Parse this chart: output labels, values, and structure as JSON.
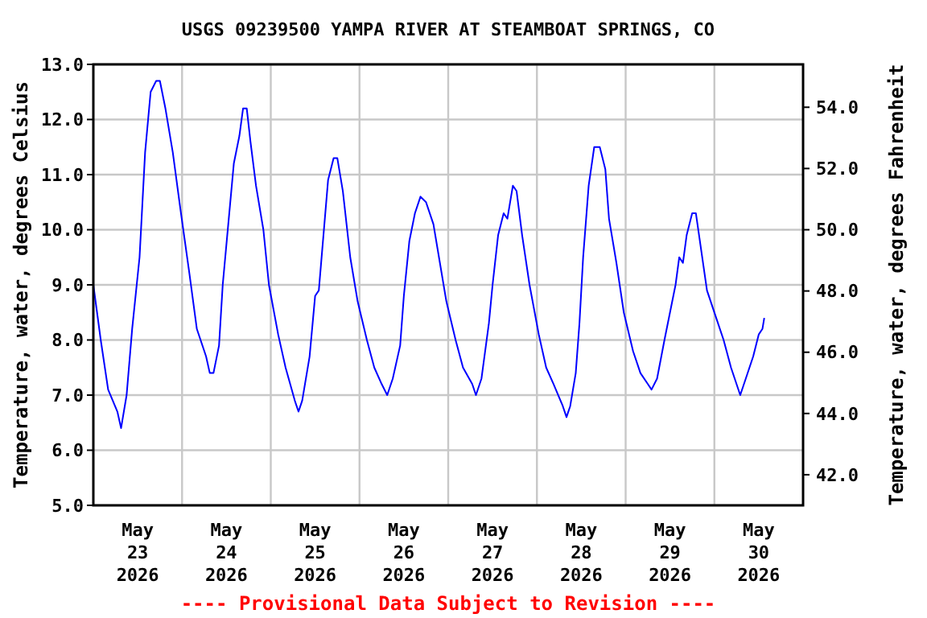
{
  "chart_data": {
    "type": "line",
    "title": "USGS 09239500 YAMPA RIVER AT STEAMBOAT SPRINGS, CO",
    "ylabel": "Temperature, water, degrees Celsius",
    "y2label": "Temperature, water, degrees Fahrenheit",
    "annotations": [
      "---- Provisional Data Subject to Revision ----"
    ],
    "x": [
      "2026-05-23T00:00",
      "2026-05-23T02:00",
      "2026-05-23T04:00",
      "2026-05-23T06:30",
      "2026-05-23T07:30",
      "2026-05-23T09:00",
      "2026-05-23T10:30",
      "2026-05-23T12:30",
      "2026-05-23T14:00",
      "2026-05-23T15:30",
      "2026-05-23T17:00",
      "2026-05-23T18:00",
      "2026-05-23T19:30",
      "2026-05-23T21:30",
      "2026-05-23T23:30",
      "2026-05-24T02:00",
      "2026-05-24T04:00",
      "2026-05-24T06:30",
      "2026-05-24T07:30",
      "2026-05-24T08:30",
      "2026-05-24T10:00",
      "2026-05-24T11:00",
      "2026-05-24T12:30",
      "2026-05-24T14:00",
      "2026-05-24T15:30",
      "2026-05-24T16:30",
      "2026-05-24T17:30",
      "2026-05-24T18:30",
      "2026-05-24T20:00",
      "2026-05-24T22:00",
      "2026-05-24T23:30",
      "2026-05-25T02:00",
      "2026-05-25T04:00",
      "2026-05-25T06:30",
      "2026-05-25T07:30",
      "2026-05-25T08:30",
      "2026-05-25T10:30",
      "2026-05-25T12:00",
      "2026-05-25T13:00",
      "2026-05-25T14:30",
      "2026-05-25T15:30",
      "2026-05-25T17:00",
      "2026-05-25T18:00",
      "2026-05-25T19:30",
      "2026-05-25T21:30",
      "2026-05-25T23:30",
      "2026-05-26T02:00",
      "2026-05-26T04:00",
      "2026-05-26T06:00",
      "2026-05-26T07:30",
      "2026-05-26T09:00",
      "2026-05-26T11:00",
      "2026-05-26T12:00",
      "2026-05-26T13:30",
      "2026-05-26T15:00",
      "2026-05-26T16:30",
      "2026-05-26T18:00",
      "2026-05-26T20:00",
      "2026-05-26T21:30",
      "2026-05-26T23:30",
      "2026-05-27T02:00",
      "2026-05-27T04:00",
      "2026-05-27T06:30",
      "2026-05-27T07:30",
      "2026-05-27T09:00",
      "2026-05-27T11:00",
      "2026-05-27T12:00",
      "2026-05-27T13:30",
      "2026-05-27T15:00",
      "2026-05-27T16:00",
      "2026-05-27T17:30",
      "2026-05-27T18:30",
      "2026-05-27T20:00",
      "2026-05-27T22:00",
      "2026-05-28T00:30",
      "2026-05-28T02:30",
      "2026-05-28T04:30",
      "2026-05-28T07:00",
      "2026-05-28T08:00",
      "2026-05-28T09:00",
      "2026-05-28T10:30",
      "2026-05-28T11:30",
      "2026-05-28T12:30",
      "2026-05-28T14:00",
      "2026-05-28T15:30",
      "2026-05-28T17:00",
      "2026-05-28T18:30",
      "2026-05-28T19:30",
      "2026-05-28T21:30",
      "2026-05-28T23:30",
      "2026-05-29T02:00",
      "2026-05-29T04:00",
      "2026-05-29T06:00",
      "2026-05-29T07:00",
      "2026-05-29T08:30",
      "2026-05-29T10:30",
      "2026-05-29T12:00",
      "2026-05-29T13:30",
      "2026-05-29T14:30",
      "2026-05-29T15:30",
      "2026-05-29T16:30",
      "2026-05-29T18:00",
      "2026-05-29T19:00",
      "2026-05-29T20:30",
      "2026-05-29T22:00",
      "2026-05-30T00:30",
      "2026-05-30T02:30",
      "2026-05-30T04:30",
      "2026-05-30T07:00",
      "2026-05-30T08:30",
      "2026-05-30T10:30",
      "2026-05-30T12:00",
      "2026-05-30T13:00",
      "2026-05-30T13:30"
    ],
    "series": [
      {
        "color": "#0000ff",
        "values": [
          9.0,
          8.0,
          7.1,
          6.7,
          6.4,
          7.0,
          8.2,
          9.5,
          11.4,
          12.5,
          12.7,
          12.7,
          12.2,
          11.4,
          10.4,
          9.2,
          8.2,
          7.7,
          7.4,
          7.4,
          7.9,
          9.0,
          10.1,
          11.2,
          11.7,
          12.2,
          12.2,
          11.6,
          10.8,
          10.0,
          9.0,
          8.1,
          7.5,
          6.9,
          6.7,
          6.9,
          7.7,
          8.8,
          8.9,
          10.1,
          10.9,
          11.3,
          11.3,
          10.7,
          9.5,
          8.7,
          8.0,
          7.5,
          7.2,
          7.0,
          7.3,
          7.9,
          8.8,
          9.8,
          10.3,
          10.6,
          10.5,
          10.1,
          9.5,
          8.7,
          8.0,
          7.5,
          7.2,
          7.0,
          7.3,
          8.3,
          9.0,
          9.9,
          10.3,
          10.2,
          10.8,
          10.7,
          9.9,
          9.0,
          8.1,
          7.5,
          7.2,
          6.8,
          6.6,
          6.8,
          7.4,
          8.3,
          9.5,
          10.8,
          11.5,
          11.5,
          11.1,
          10.2,
          9.4,
          8.5,
          7.8,
          7.4,
          7.2,
          7.1,
          7.3,
          8.0,
          8.5,
          9.0,
          9.5,
          9.4,
          9.9,
          10.3,
          10.3,
          9.6,
          8.9,
          8.4,
          8.0,
          7.5,
          7.0,
          7.3,
          7.7,
          8.1,
          8.2,
          8.4
        ]
      }
    ],
    "xlim": [
      "2026-05-23T00:00",
      "2026-05-31T00:00"
    ],
    "xticks": [
      {
        "value": "2026-05-23T12:00",
        "label": "May\n23\n2026"
      },
      {
        "value": "2026-05-24T00:00",
        "label": null
      },
      {
        "value": "2026-05-24T12:00",
        "label": "May\n24\n2026"
      },
      {
        "value": "2026-05-25T00:00",
        "label": null
      },
      {
        "value": "2026-05-25T12:00",
        "label": "May\n25\n2026"
      },
      {
        "value": "2026-05-26T00:00",
        "label": null
      },
      {
        "value": "2026-05-26T12:00",
        "label": "May\n26\n2026"
      },
      {
        "value": "2026-05-27T00:00",
        "label": null
      },
      {
        "value": "2026-05-27T12:00",
        "label": "May\n27\n2026"
      },
      {
        "value": "2026-05-28T00:00",
        "label": null
      },
      {
        "value": "2026-05-28T12:00",
        "label": "May\n28\n2026"
      },
      {
        "value": "2026-05-29T00:00",
        "label": null
      },
      {
        "value": "2026-05-29T12:00",
        "label": "May\n29\n2026"
      },
      {
        "value": "2026-05-30T00:00",
        "label": null
      },
      {
        "value": "2026-05-30T12:00",
        "label": "May\n30\n2026"
      }
    ],
    "ylim": [
      5,
      13
    ],
    "yticks": [
      {
        "value": 5,
        "label": "5.0"
      },
      {
        "value": 6,
        "label": "6.0"
      },
      {
        "value": 7,
        "label": "7.0"
      },
      {
        "value": 8,
        "label": "8.0"
      },
      {
        "value": 9,
        "label": "9.0"
      },
      {
        "value": 10,
        "label": "10.0"
      },
      {
        "value": 11,
        "label": "11.0"
      },
      {
        "value": 12,
        "label": "12.0"
      },
      {
        "value": 13,
        "label": "13.0"
      }
    ],
    "y2lim": [
      41,
      55.4
    ],
    "y2ticks": [
      {
        "value": 42,
        "label": "42.0"
      },
      {
        "value": 44,
        "label": "44.0"
      },
      {
        "value": 46,
        "label": "46.0"
      },
      {
        "value": 48,
        "label": "48.0"
      },
      {
        "value": 50,
        "label": "50.0"
      },
      {
        "value": 52,
        "label": "52.0"
      },
      {
        "value": 54,
        "label": "54.0"
      }
    ],
    "grid": true,
    "line_style": "solid"
  }
}
